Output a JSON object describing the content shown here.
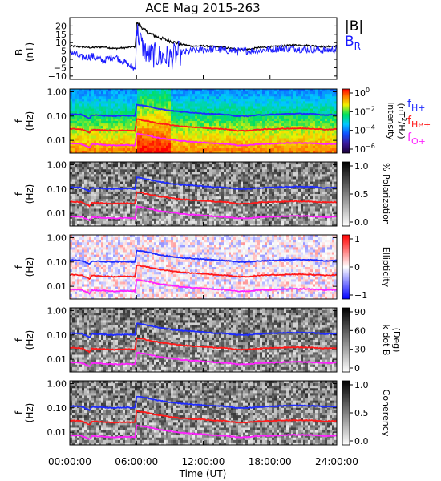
{
  "figure": {
    "title": "ACE Mag 2015-263",
    "xlabel": "Time (UT)",
    "xticks": [
      "00:00:00",
      "06:00:00",
      "12:00:00",
      "18:00:00",
      "24:00:00"
    ],
    "xtick_hours": [
      0,
      6,
      12,
      18,
      24
    ],
    "xrange_hours": [
      0,
      24
    ]
  },
  "legend": {
    "mag_total": "|B|",
    "mag_radial": "B",
    "mag_radial_sub": "R",
    "h": "f",
    "h_sub": "H+",
    "he": "f",
    "he_sub": "He+",
    "o": "f",
    "o_sub": "O+"
  },
  "colors": {
    "total": "#000000",
    "radial": "#1a1aff",
    "h_plus": "#1f2bff",
    "he_plus": "#ff1a1a",
    "o_plus": "#ff22ff"
  },
  "chart_data": [
    {
      "type": "line",
      "panel": "magnetic-field",
      "ylabel": "B",
      "yunit": "(nT)",
      "ylim": [
        -12,
        25
      ],
      "yticks": [
        "20",
        "15",
        "10",
        "5",
        "0",
        "−5",
        "−10"
      ],
      "ytick_values": [
        20,
        15,
        10,
        5,
        0,
        -5,
        -10
      ],
      "x": [
        0,
        1,
        2,
        3,
        4,
        5,
        5.9,
        6.0,
        6.5,
        7,
        8,
        9,
        10,
        11,
        12,
        13,
        14,
        15,
        16,
        17,
        18,
        19,
        20,
        21,
        22,
        23,
        24
      ],
      "series": [
        {
          "name": "|B|",
          "values": [
            8,
            7.5,
            7,
            7.5,
            6.5,
            7,
            7.5,
            22,
            19,
            16,
            13,
            11,
            9,
            8,
            8,
            7.5,
            7,
            6,
            6,
            7,
            7.5,
            8,
            8.5,
            8.5,
            8,
            7.5,
            8
          ]
        },
        {
          "name": "BR",
          "values": [
            5,
            1,
            2,
            -1,
            2,
            -2,
            -6,
            18,
            8,
            3,
            2,
            1,
            4,
            5,
            6,
            6,
            5.5,
            5,
            5,
            5.5,
            6,
            6.5,
            6.5,
            6,
            6,
            5.5,
            6
          ]
        }
      ]
    },
    {
      "type": "heatmap",
      "panel": "intensity",
      "ylabel": "f",
      "yunit": "(Hz)",
      "yscale": "log",
      "ylim": [
        0.003,
        1.3
      ],
      "yticks": [
        "1.00",
        "0.10",
        "0.01"
      ],
      "colorbar_label": "Intensity",
      "colorbar_unit": "(nT",
      "colorbar_unit_sup": "2",
      "colorbar_unit_tail": "/Hz)",
      "colorbar_scale": "log",
      "colorbar_ticks": [
        {
          "base": "10",
          "exp": "0"
        },
        {
          "base": "10",
          "exp": "−2"
        },
        {
          "base": "10",
          "exp": "−4"
        },
        {
          "base": "10",
          "exp": "−6"
        }
      ],
      "colormap": "rainbow"
    },
    {
      "type": "heatmap",
      "panel": "polarization",
      "ylabel": "f",
      "yunit": "(Hz)",
      "yscale": "log",
      "ylim": [
        0.003,
        1.3
      ],
      "yticks": [
        "1.00",
        "0.10",
        "0.01"
      ],
      "colorbar_label": "% Polarization",
      "colorbar_ticks": [
        "1.0",
        "0.5",
        "0.0"
      ],
      "colormap": "gray-reversed"
    },
    {
      "type": "heatmap",
      "panel": "ellipticity",
      "ylabel": "f",
      "yunit": "(Hz)",
      "yscale": "log",
      "ylim": [
        0.003,
        1.3
      ],
      "yticks": [
        "1.00",
        "0.10",
        "0.01"
      ],
      "colorbar_label": "Ellipticity",
      "colorbar_ticks": [
        "1",
        "0",
        "−1"
      ],
      "colormap": "blue-white-red"
    },
    {
      "type": "heatmap",
      "panel": "wave-normal",
      "ylabel": "f",
      "yunit": "(Hz)",
      "yscale": "log",
      "ylim": [
        0.003,
        1.3
      ],
      "yticks": [
        "1.00",
        "0.10",
        "0.01"
      ],
      "colorbar_label": "k dot B",
      "colorbar_unit": "(Deg)",
      "colorbar_ticks": [
        "90",
        "60",
        "30",
        "0"
      ],
      "colormap": "gray-reversed"
    },
    {
      "type": "heatmap",
      "panel": "coherency",
      "ylabel": "f",
      "yunit": "(Hz)",
      "yscale": "log",
      "ylim": [
        0.003,
        1.3
      ],
      "yticks": [
        "1.00",
        "0.10",
        "0.01"
      ],
      "colorbar_label": "Coherency",
      "colorbar_ticks": [
        "1.0",
        "0.5",
        "0.0"
      ],
      "colormap": "gray-reversed"
    }
  ],
  "gyrofrequency_lines": {
    "x": [
      0,
      1,
      1.8,
      2,
      3,
      4,
      5,
      5.9,
      6.0,
      7,
      8,
      9,
      10,
      11,
      12,
      13,
      14,
      15,
      16,
      17,
      18,
      19,
      20,
      21,
      22,
      23,
      24
    ],
    "h_plus": [
      0.12,
      0.115,
      0.08,
      0.11,
      0.105,
      0.1,
      0.105,
      0.1,
      0.3,
      0.25,
      0.2,
      0.17,
      0.15,
      0.14,
      0.13,
      0.12,
      0.115,
      0.1,
      0.1,
      0.11,
      0.115,
      0.12,
      0.125,
      0.125,
      0.12,
      0.11,
      0.115
    ],
    "he_plus": [
      0.03,
      0.029,
      0.02,
      0.028,
      0.026,
      0.025,
      0.026,
      0.025,
      0.075,
      0.062,
      0.05,
      0.043,
      0.038,
      0.035,
      0.033,
      0.03,
      0.029,
      0.025,
      0.025,
      0.028,
      0.029,
      0.03,
      0.031,
      0.031,
      0.03,
      0.028,
      0.029
    ],
    "o_plus": [
      0.0075,
      0.0072,
      0.005,
      0.007,
      0.0066,
      0.0062,
      0.0065,
      0.0062,
      0.019,
      0.016,
      0.0125,
      0.011,
      0.0095,
      0.0088,
      0.0082,
      0.0075,
      0.0072,
      0.0063,
      0.0063,
      0.007,
      0.0072,
      0.0075,
      0.0078,
      0.0078,
      0.0075,
      0.007,
      0.0072
    ]
  }
}
